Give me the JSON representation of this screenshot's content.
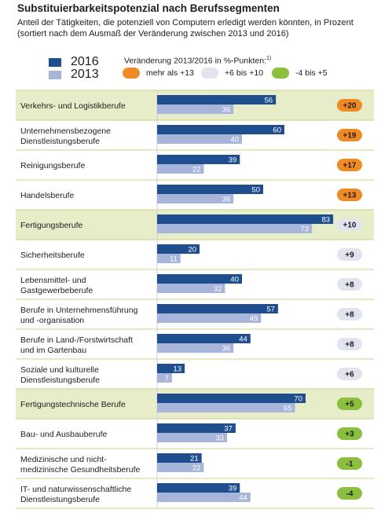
{
  "title": "Substituierbarkeitspotenzial nach Berufssegmenten",
  "subtitle": "Anteil der Tätigkeiten, die potenziell von Computern erledigt werden könnten, in Prozent (sortiert nach dem Ausmaß der Veränderung zwischen 2013 und 2016)",
  "legend": {
    "series_2016": "2016",
    "series_2013": "2013",
    "change_title": "Veränderung 2013/2016 in %-Punkten:",
    "change_footnote": "1)",
    "change_high": "mehr als +13",
    "change_mid": "+6 bis +10",
    "change_low": "-4 bis +5"
  },
  "colors": {
    "bar_2016": "#1f4e8e",
    "bar_2013": "#a8b5da",
    "band_green": "#e6edc8",
    "band_line": "#c9d38d",
    "pill_orange": "#f08a24",
    "pill_grey": "#e1e4ef",
    "pill_green": "#8cbf3f"
  },
  "chart_data": {
    "type": "bar",
    "orientation": "horizontal",
    "categories": [
      "Verkehrs- und Logistikberufe",
      "Unternehmensbezogene Dienstleistungsberufe",
      "Reinigungsberufe",
      "Handelsberufe",
      "Fertigungsberufe",
      "Sicherheitsberufe",
      "Lebensmittel- und Gastgewerbeberufe",
      "Berufe in Unternehmensführung und -organisation",
      "Berufe in Land-/Forstwirtschaft und im Gartenbau",
      "Soziale und kulturelle Dienstleistungsberufe",
      "Fertigungstechnische Berufe",
      "Bau- und Ausbauberufe",
      "Medizinische und nicht-medizinische Gesundheitsberufe",
      "IT- und naturwissenschaftliche Dienstleistungsberufe"
    ],
    "category_lines": [
      [
        "Verkehrs- und Logistikberufe"
      ],
      [
        "Unternehmensbezogene",
        "Dienstleistungsberufe"
      ],
      [
        "Reinigungsberufe"
      ],
      [
        "Handelsberufe"
      ],
      [
        "Fertigungsberufe"
      ],
      [
        "Sicherheitsberufe"
      ],
      [
        "Lebensmittel- und",
        "Gastgewerbeberufe"
      ],
      [
        "Berufe in Unternehmensführung",
        "und -organisation"
      ],
      [
        "Berufe in Land-/Forstwirtschaft",
        "und im Gartenbau"
      ],
      [
        "Soziale und kulturelle",
        "Dienstleistungsberufe"
      ],
      [
        "Fertigungstechnische Berufe"
      ],
      [
        "Bau- und Ausbauberufe"
      ],
      [
        "Medizinische und nicht-",
        "medizinische Gesundheitsberufe"
      ],
      [
        "IT- und naturwissenschaftliche",
        "Dienstleistungsberufe"
      ]
    ],
    "series": [
      {
        "name": "2016",
        "values": [
          56,
          60,
          39,
          50,
          83,
          20,
          40,
          57,
          44,
          13,
          70,
          37,
          21,
          39
        ]
      },
      {
        "name": "2013",
        "values": [
          36,
          40,
          22,
          36,
          73,
          11,
          32,
          49,
          36,
          7,
          65,
          33,
          22,
          44
        ]
      }
    ],
    "change_labels": [
      "+20",
      "+19",
      "+17",
      "+13",
      "+10",
      "+9",
      "+8",
      "+8",
      "+8",
      "+6",
      "+5",
      "+3",
      "-1",
      "-4"
    ],
    "change_groups": [
      "high",
      "high",
      "high",
      "high",
      "mid",
      "mid",
      "mid",
      "mid",
      "mid",
      "mid",
      "low",
      "low",
      "low",
      "low"
    ],
    "xlim": [
      0,
      100
    ]
  }
}
